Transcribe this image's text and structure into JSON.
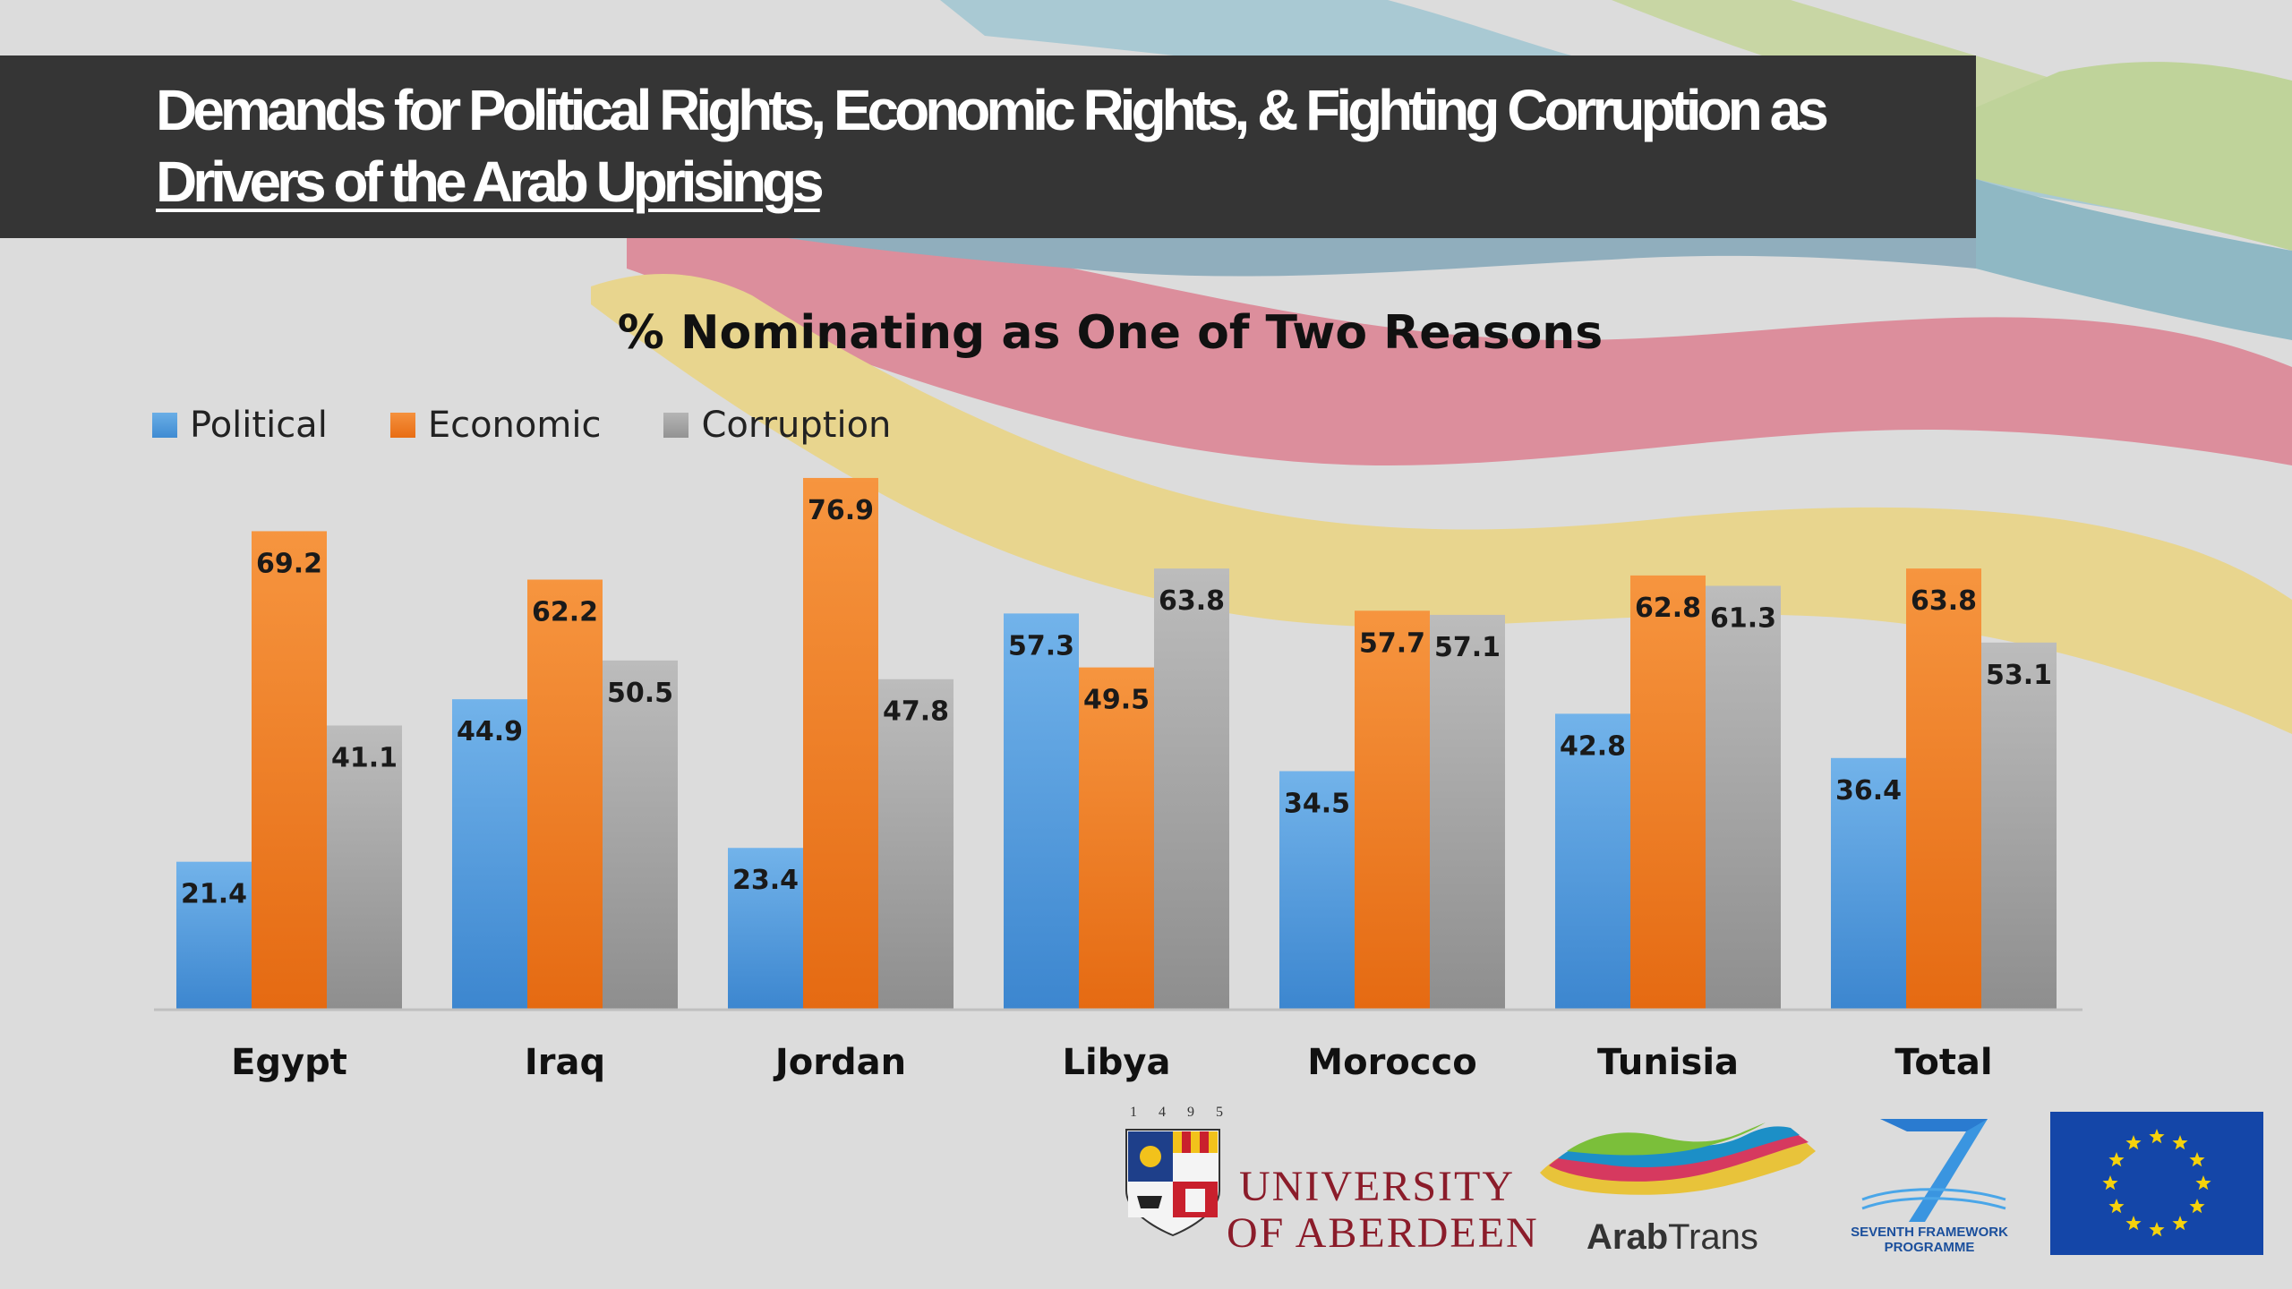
{
  "slide": {
    "title_line_1": "Demands for Political Rights, Economic Rights, & Fighting Corruption as",
    "title_line_2": "Drivers of the Arab Uprisings"
  },
  "colors": {
    "political": "#4a97dc",
    "economic": "#f07c23",
    "corruption": "#a0a0a0",
    "title_bar": "#353535"
  },
  "chart_data": {
    "type": "bar",
    "title": "% Nominating as One of Two Reasons",
    "categories": [
      "Egypt",
      "Iraq",
      "Jordan",
      "Libya",
      "Morocco",
      "Tunisia",
      "Total"
    ],
    "series": [
      {
        "name": "Political",
        "values": [
          21.4,
          44.9,
          23.4,
          57.3,
          34.5,
          42.8,
          36.4
        ]
      },
      {
        "name": "Economic",
        "values": [
          69.2,
          62.2,
          76.9,
          49.5,
          57.7,
          62.8,
          63.8
        ]
      },
      {
        "name": "Corruption",
        "values": [
          41.1,
          50.5,
          47.8,
          63.8,
          57.1,
          61.3,
          53.1
        ]
      }
    ],
    "legend_position": "top-left",
    "grid": false,
    "data_labels": true,
    "ylim": [
      0,
      80
    ]
  },
  "logos": {
    "aberdeen_year": "1 4 9 5",
    "aberdeen_line_1": "UNIVERSITY",
    "aberdeen_line_2": "OF ABERDEEN",
    "arabtrans_bold": "Arab",
    "arabtrans_light": "Trans",
    "fp7_line_1": "SEVENTH FRAMEWORK",
    "fp7_line_2": "PROGRAMME"
  }
}
